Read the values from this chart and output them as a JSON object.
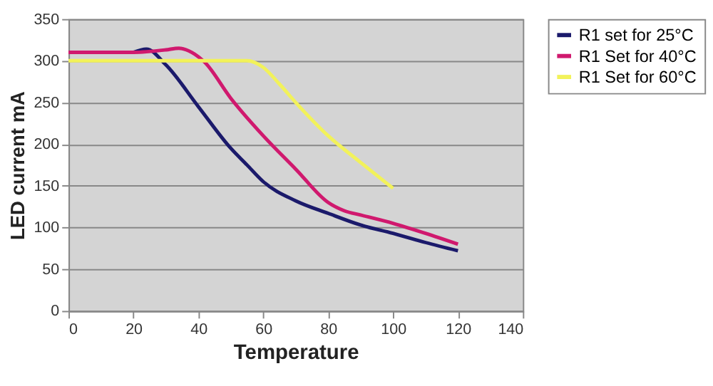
{
  "chart_data": {
    "type": "line",
    "xlabel": "Temperature",
    "ylabel": "LED current mA",
    "xlim": [
      0,
      140
    ],
    "xticks": [
      0,
      20,
      40,
      60,
      80,
      100,
      120,
      140
    ],
    "ylim": [
      0,
      350
    ],
    "yticks": [
      0,
      50,
      100,
      150,
      200,
      250,
      300,
      350
    ],
    "grid": "y",
    "legend": "right",
    "marker": "none",
    "line_style": "solid",
    "series": [
      {
        "name": "R1 set for 25°C",
        "color": "#1b1a6b",
        "x": [
          20,
          24,
          30,
          40,
          50,
          55,
          60,
          70,
          80,
          90,
          100,
          110,
          120
        ],
        "values": [
          310,
          314,
          295,
          245,
          195,
          175,
          155,
          132,
          117,
          103,
          93,
          82,
          72
        ]
      },
      {
        "name": "R1 Set for 40°C",
        "color": "#d0196e",
        "x": [
          0,
          20,
          30,
          34,
          38,
          42,
          50,
          60,
          70,
          80,
          85,
          90,
          100,
          110,
          120
        ],
        "values": [
          310,
          310,
          313,
          315,
          310,
          298,
          255,
          210,
          170,
          130,
          120,
          115,
          105,
          93,
          80
        ]
      },
      {
        "name": "R1 Set for 60°C",
        "color": "#f2f25a",
        "x": [
          0,
          50,
          55,
          60,
          65,
          70,
          80,
          90,
          100
        ],
        "values": [
          300,
          300,
          300,
          292,
          272,
          250,
          210,
          178,
          147
        ]
      }
    ]
  }
}
